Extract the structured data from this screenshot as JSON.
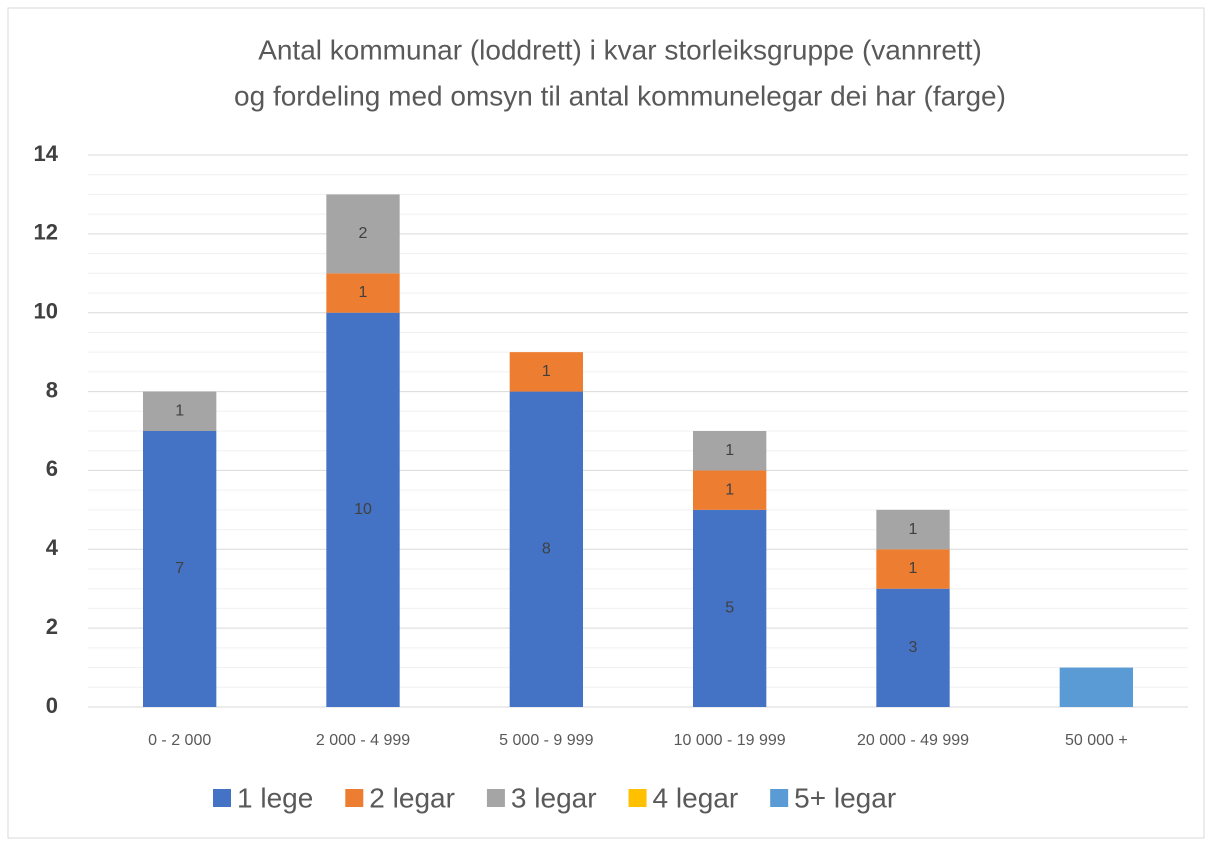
{
  "chart_data": {
    "type": "stacked_bar",
    "title": [
      "Antal kommunar (loddrett) i kvar storleiksgruppe (vannrett)",
      "og fordeling med omsyn til antal kommunelegar dei har (farge)"
    ],
    "categories": [
      "0 - 2 000",
      "2 000 - 4 999",
      "5 000 - 9 999",
      "10 000 - 19 999",
      "20 000 - 49 999",
      "50 000 +"
    ],
    "series": [
      {
        "name": "1 lege",
        "color": "#4472c4",
        "values": [
          7,
          10,
          8,
          5,
          3,
          null
        ],
        "show_labels": true
      },
      {
        "name": "2 legar",
        "color": "#ed7d31",
        "values": [
          null,
          1,
          1,
          1,
          1,
          null
        ],
        "show_labels": true
      },
      {
        "name": "3 legar",
        "color": "#a5a5a5",
        "values": [
          1,
          2,
          null,
          1,
          1,
          null
        ],
        "show_labels": true
      },
      {
        "name": "4 legar",
        "color": "#ffc000",
        "values": [
          null,
          null,
          null,
          null,
          null,
          null
        ],
        "show_labels": true
      },
      {
        "name": "5+ legar",
        "color": "#5b9bd5",
        "values": [
          null,
          null,
          null,
          null,
          null,
          1
        ],
        "show_labels": false
      }
    ],
    "ylim": [
      0,
      14
    ],
    "yticks": [
      0,
      2,
      4,
      6,
      8,
      10,
      12,
      14
    ],
    "minor_yticks": [
      0.5,
      1,
      1.5,
      2.5,
      3,
      3.5,
      4.5,
      5,
      5.5,
      6.5,
      7,
      7.5,
      8.5,
      9,
      9.5,
      10.5,
      11,
      11.5,
      12.5,
      13,
      13.5
    ],
    "grid": true,
    "legend": "bottom"
  }
}
